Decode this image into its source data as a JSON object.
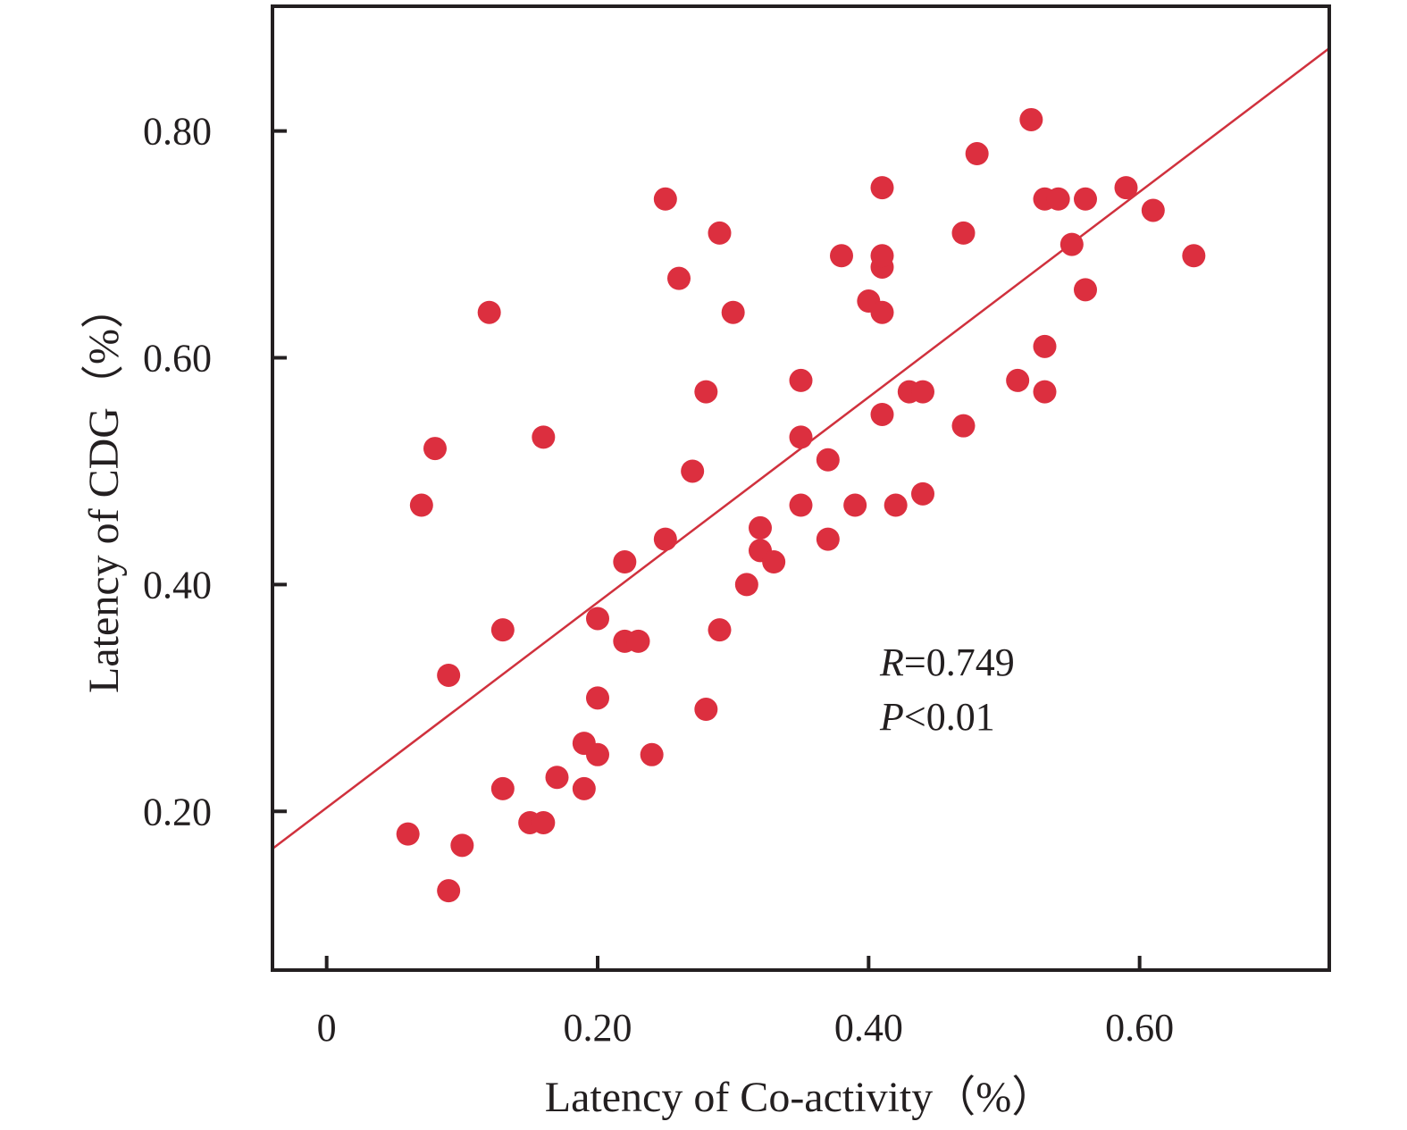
{
  "chart_data": {
    "type": "scatter",
    "title": "",
    "xlabel": "Latency of Co-activity（%）",
    "ylabel": "Latency of CDG（%）",
    "xlim": [
      -0.04,
      0.74
    ],
    "ylim": [
      0.06,
      0.91
    ],
    "xticks": [
      0,
      0.2,
      0.4,
      0.6
    ],
    "xtick_labels": [
      "0",
      "0.20",
      "0.40",
      "0.60"
    ],
    "yticks": [
      0.2,
      0.4,
      0.6,
      0.8
    ],
    "ytick_labels": [
      "0.20",
      "0.40",
      "0.60",
      "0.80"
    ],
    "grid": false,
    "legend": "none",
    "point_color": "#dc2f3f",
    "line_color": "#d0313d",
    "axis_color": "#231f20",
    "fit_line": {
      "x": [
        -0.04,
        0.74
      ],
      "y": [
        0.167,
        0.873
      ]
    },
    "annotations": {
      "r_label": "R",
      "r_value": "=0.749",
      "p_label": "P",
      "p_value": "<0.01"
    },
    "series": [
      {
        "points": [
          [
            0.06,
            0.18
          ],
          [
            0.07,
            0.47
          ],
          [
            0.08,
            0.52
          ],
          [
            0.09,
            0.13
          ],
          [
            0.09,
            0.32
          ],
          [
            0.1,
            0.17
          ],
          [
            0.12,
            0.64
          ],
          [
            0.13,
            0.22
          ],
          [
            0.13,
            0.36
          ],
          [
            0.15,
            0.19
          ],
          [
            0.16,
            0.19
          ],
          [
            0.16,
            0.53
          ],
          [
            0.17,
            0.23
          ],
          [
            0.19,
            0.22
          ],
          [
            0.19,
            0.26
          ],
          [
            0.2,
            0.25
          ],
          [
            0.2,
            0.3
          ],
          [
            0.2,
            0.37
          ],
          [
            0.22,
            0.35
          ],
          [
            0.22,
            0.42
          ],
          [
            0.23,
            0.35
          ],
          [
            0.24,
            0.25
          ],
          [
            0.25,
            0.44
          ],
          [
            0.25,
            0.74
          ],
          [
            0.26,
            0.67
          ],
          [
            0.27,
            0.5
          ],
          [
            0.28,
            0.29
          ],
          [
            0.28,
            0.57
          ],
          [
            0.29,
            0.36
          ],
          [
            0.29,
            0.71
          ],
          [
            0.3,
            0.64
          ],
          [
            0.31,
            0.4
          ],
          [
            0.32,
            0.43
          ],
          [
            0.32,
            0.45
          ],
          [
            0.33,
            0.42
          ],
          [
            0.35,
            0.47
          ],
          [
            0.35,
            0.53
          ],
          [
            0.35,
            0.58
          ],
          [
            0.37,
            0.44
          ],
          [
            0.37,
            0.51
          ],
          [
            0.38,
            0.69
          ],
          [
            0.39,
            0.47
          ],
          [
            0.4,
            0.65
          ],
          [
            0.41,
            0.55
          ],
          [
            0.41,
            0.64
          ],
          [
            0.41,
            0.68
          ],
          [
            0.41,
            0.69
          ],
          [
            0.41,
            0.75
          ],
          [
            0.42,
            0.47
          ],
          [
            0.43,
            0.57
          ],
          [
            0.44,
            0.48
          ],
          [
            0.44,
            0.57
          ],
          [
            0.47,
            0.54
          ],
          [
            0.47,
            0.71
          ],
          [
            0.48,
            0.78
          ],
          [
            0.51,
            0.58
          ],
          [
            0.52,
            0.81
          ],
          [
            0.53,
            0.57
          ],
          [
            0.53,
            0.61
          ],
          [
            0.53,
            0.74
          ],
          [
            0.54,
            0.74
          ],
          [
            0.55,
            0.7
          ],
          [
            0.56,
            0.66
          ],
          [
            0.56,
            0.74
          ],
          [
            0.59,
            0.75
          ],
          [
            0.61,
            0.73
          ],
          [
            0.64,
            0.69
          ]
        ]
      }
    ]
  }
}
